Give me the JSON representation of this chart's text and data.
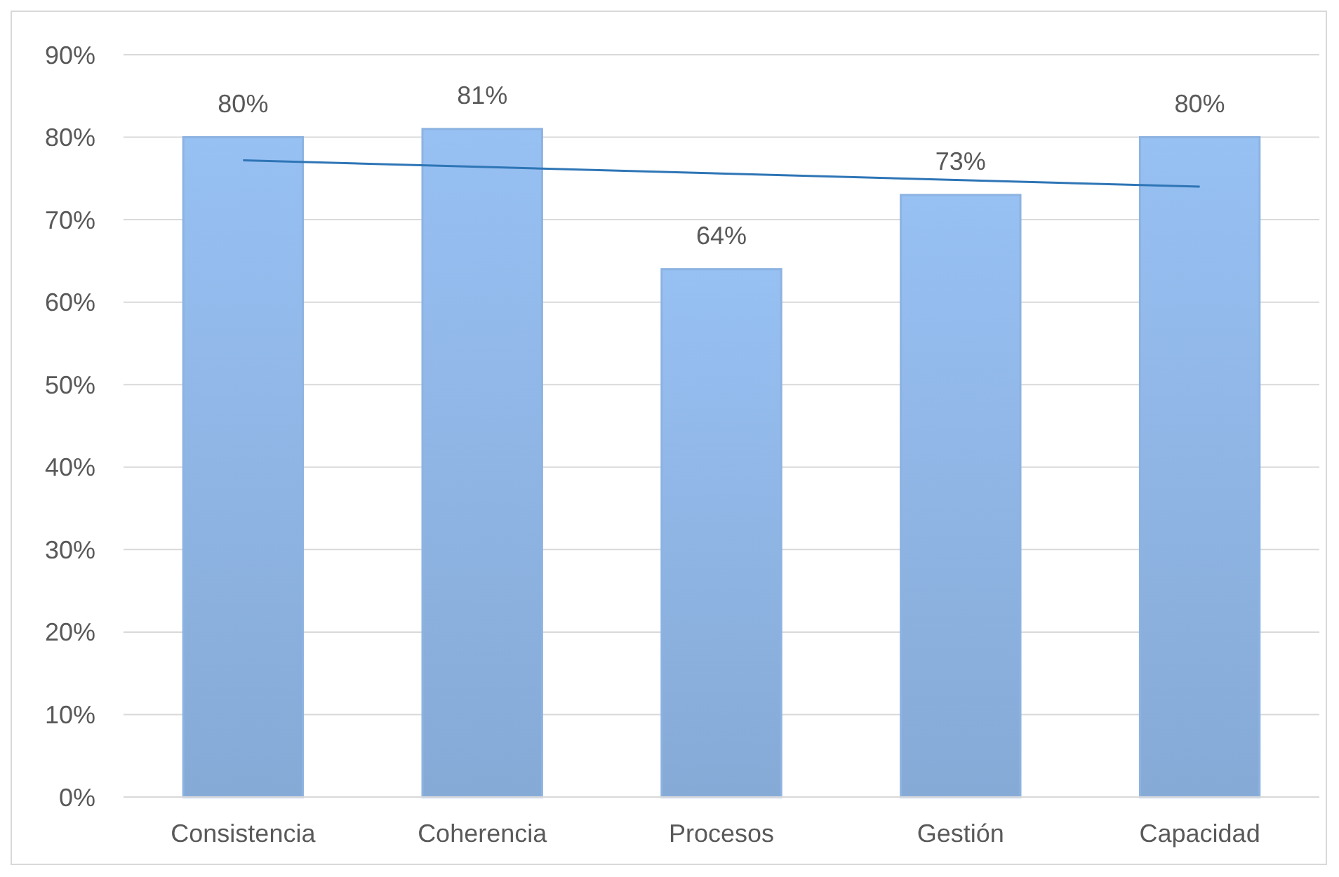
{
  "chart_data": {
    "type": "bar",
    "categories": [
      "Consistencia",
      "Coherencia",
      "Procesos",
      "Gestión",
      "Capacidad"
    ],
    "series": [
      {
        "color": "#8db3e2",
        "values": [
          80,
          81,
          64,
          73,
          80
        ],
        "value_labels": [
          "80%",
          "81%",
          "64%",
          "73%",
          "80%"
        ]
      },
      {
        "type": "line",
        "color": "#2e75b6",
        "x": [
          "Consistencia",
          "Capacidad"
        ],
        "values": [
          77.2,
          74.0
        ]
      }
    ],
    "ylim": [
      0,
      90
    ],
    "yticks": [
      {
        "value": 0,
        "label": "0%"
      },
      {
        "value": 10,
        "label": "10%"
      },
      {
        "value": 20,
        "label": "20%"
      },
      {
        "value": 30,
        "label": "30%"
      },
      {
        "value": 40,
        "label": "40%"
      },
      {
        "value": 50,
        "label": "50%"
      },
      {
        "value": 60,
        "label": "60%"
      },
      {
        "value": 70,
        "label": "70%"
      },
      {
        "value": 80,
        "label": "80%"
      },
      {
        "value": 90,
        "label": "90%"
      }
    ],
    "grid": "y",
    "marker": "none",
    "line_style": "solid"
  }
}
